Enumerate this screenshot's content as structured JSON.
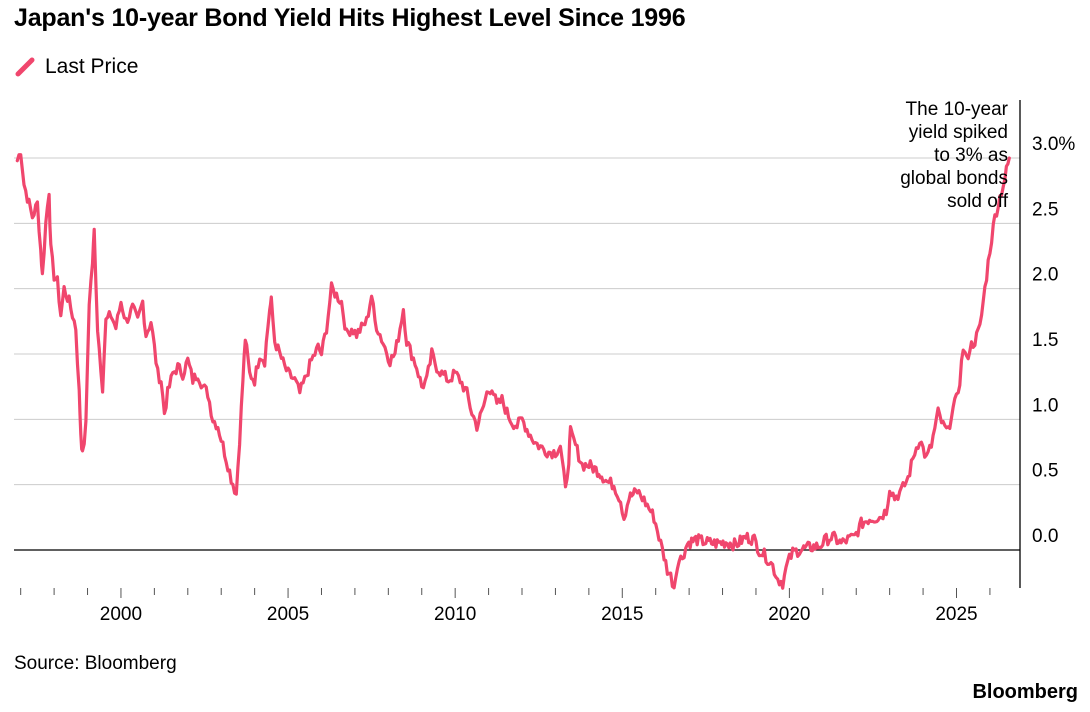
{
  "chart_data": {
    "type": "line",
    "title": "Japan's 10-year Bond Yield Hits Highest Level Since 1996",
    "legend": {
      "placement": "top-left",
      "entries": [
        "Last Price"
      ]
    },
    "series": [
      {
        "name": "Last Price",
        "color": "#f0466d",
        "points": [
          [
            1996.9,
            2.98
          ],
          [
            1997.0,
            3.06
          ],
          [
            1997.1,
            2.8
          ],
          [
            1997.2,
            2.7
          ],
          [
            1997.35,
            2.55
          ],
          [
            1997.5,
            2.65
          ],
          [
            1997.6,
            2.3
          ],
          [
            1997.65,
            2.1
          ],
          [
            1997.75,
            2.5
          ],
          [
            1997.85,
            2.75
          ],
          [
            1997.9,
            2.3
          ],
          [
            1998.0,
            2.1
          ],
          [
            1998.1,
            2.05
          ],
          [
            1998.2,
            1.8
          ],
          [
            1998.3,
            2.0
          ],
          [
            1998.45,
            1.9
          ],
          [
            1998.55,
            1.8
          ],
          [
            1998.65,
            1.7
          ],
          [
            1998.75,
            1.2
          ],
          [
            1998.8,
            0.9
          ],
          [
            1998.85,
            0.72
          ],
          [
            1998.95,
            0.95
          ],
          [
            1999.05,
            1.9
          ],
          [
            1999.15,
            2.2
          ],
          [
            1999.2,
            2.44
          ],
          [
            1999.3,
            1.7
          ],
          [
            1999.45,
            1.25
          ],
          [
            1999.55,
            1.75
          ],
          [
            1999.7,
            1.8
          ],
          [
            1999.85,
            1.7
          ],
          [
            2000.0,
            1.9
          ],
          [
            2000.15,
            1.75
          ],
          [
            2000.35,
            1.85
          ],
          [
            2000.5,
            1.75
          ],
          [
            2000.65,
            1.9
          ],
          [
            2000.75,
            1.65
          ],
          [
            2000.9,
            1.75
          ],
          [
            2001.0,
            1.55
          ],
          [
            2001.1,
            1.35
          ],
          [
            2001.2,
            1.3
          ],
          [
            2001.3,
            1.05
          ],
          [
            2001.4,
            1.2
          ],
          [
            2001.55,
            1.35
          ],
          [
            2001.7,
            1.4
          ],
          [
            2001.85,
            1.35
          ],
          [
            2002.0,
            1.45
          ],
          [
            2002.15,
            1.3
          ],
          [
            2002.3,
            1.35
          ],
          [
            2002.45,
            1.25
          ],
          [
            2002.6,
            1.2
          ],
          [
            2002.75,
            1.0
          ],
          [
            2002.9,
            0.95
          ],
          [
            2003.0,
            0.85
          ],
          [
            2003.15,
            0.7
          ],
          [
            2003.3,
            0.55
          ],
          [
            2003.45,
            0.43
          ],
          [
            2003.55,
            0.85
          ],
          [
            2003.65,
            1.3
          ],
          [
            2003.72,
            1.62
          ],
          [
            2003.85,
            1.35
          ],
          [
            2004.0,
            1.3
          ],
          [
            2004.15,
            1.5
          ],
          [
            2004.3,
            1.45
          ],
          [
            2004.45,
            1.85
          ],
          [
            2004.5,
            1.9
          ],
          [
            2004.6,
            1.6
          ],
          [
            2004.75,
            1.5
          ],
          [
            2004.9,
            1.4
          ],
          [
            2005.0,
            1.35
          ],
          [
            2005.2,
            1.3
          ],
          [
            2005.35,
            1.2
          ],
          [
            2005.5,
            1.3
          ],
          [
            2005.7,
            1.45
          ],
          [
            2005.9,
            1.55
          ],
          [
            2006.0,
            1.5
          ],
          [
            2006.15,
            1.7
          ],
          [
            2006.3,
            2.0
          ],
          [
            2006.45,
            1.95
          ],
          [
            2006.6,
            1.9
          ],
          [
            2006.75,
            1.65
          ],
          [
            2006.9,
            1.7
          ],
          [
            2007.05,
            1.65
          ],
          [
            2007.2,
            1.7
          ],
          [
            2007.35,
            1.75
          ],
          [
            2007.5,
            1.95
          ],
          [
            2007.6,
            1.75
          ],
          [
            2007.75,
            1.65
          ],
          [
            2007.9,
            1.55
          ],
          [
            2008.05,
            1.45
          ],
          [
            2008.2,
            1.5
          ],
          [
            2008.35,
            1.7
          ],
          [
            2008.45,
            1.85
          ],
          [
            2008.55,
            1.6
          ],
          [
            2008.7,
            1.5
          ],
          [
            2008.85,
            1.4
          ],
          [
            2009.0,
            1.25
          ],
          [
            2009.15,
            1.3
          ],
          [
            2009.3,
            1.5
          ],
          [
            2009.45,
            1.4
          ],
          [
            2009.6,
            1.35
          ],
          [
            2009.8,
            1.3
          ],
          [
            2010.0,
            1.35
          ],
          [
            2010.15,
            1.3
          ],
          [
            2010.35,
            1.2
          ],
          [
            2010.5,
            1.05
          ],
          [
            2010.65,
            0.95
          ],
          [
            2010.8,
            1.05
          ],
          [
            2010.95,
            1.2
          ],
          [
            2011.1,
            1.25
          ],
          [
            2011.25,
            1.1
          ],
          [
            2011.4,
            1.15
          ],
          [
            2011.55,
            1.05
          ],
          [
            2011.7,
            0.98
          ],
          [
            2011.85,
            0.95
          ],
          [
            2012.0,
            1.0
          ],
          [
            2012.2,
            0.9
          ],
          [
            2012.4,
            0.82
          ],
          [
            2012.6,
            0.78
          ],
          [
            2012.8,
            0.75
          ],
          [
            2013.0,
            0.75
          ],
          [
            2013.15,
            0.8
          ],
          [
            2013.3,
            0.45
          ],
          [
            2013.4,
            0.7
          ],
          [
            2013.45,
            0.9
          ],
          [
            2013.6,
            0.8
          ],
          [
            2013.8,
            0.65
          ],
          [
            2014.0,
            0.65
          ],
          [
            2014.3,
            0.6
          ],
          [
            2014.55,
            0.52
          ],
          [
            2014.75,
            0.5
          ],
          [
            2014.95,
            0.38
          ],
          [
            2015.05,
            0.25
          ],
          [
            2015.2,
            0.4
          ],
          [
            2015.45,
            0.45
          ],
          [
            2015.6,
            0.4
          ],
          [
            2015.8,
            0.32
          ],
          [
            2015.95,
            0.25
          ],
          [
            2016.1,
            0.1
          ],
          [
            2016.2,
            0.0
          ],
          [
            2016.35,
            -0.15
          ],
          [
            2016.45,
            -0.2
          ],
          [
            2016.55,
            -0.28
          ],
          [
            2016.65,
            -0.1
          ],
          [
            2016.8,
            -0.05
          ],
          [
            2016.95,
            0.05
          ],
          [
            2017.2,
            0.08
          ],
          [
            2017.5,
            0.06
          ],
          [
            2017.8,
            0.05
          ],
          [
            2018.1,
            0.06
          ],
          [
            2018.4,
            0.04
          ],
          [
            2018.7,
            0.1
          ],
          [
            2018.95,
            0.08
          ],
          [
            2019.1,
            0.0
          ],
          [
            2019.3,
            -0.05
          ],
          [
            2019.5,
            -0.12
          ],
          [
            2019.65,
            -0.22
          ],
          [
            2019.8,
            -0.25
          ],
          [
            2019.95,
            -0.1
          ],
          [
            2020.1,
            -0.02
          ],
          [
            2020.3,
            0.0
          ],
          [
            2020.6,
            0.02
          ],
          [
            2020.9,
            0.03
          ],
          [
            2021.1,
            0.08
          ],
          [
            2021.3,
            0.1
          ],
          [
            2021.55,
            0.05
          ],
          [
            2021.75,
            0.08
          ],
          [
            2021.95,
            0.1
          ],
          [
            2022.15,
            0.2
          ],
          [
            2022.4,
            0.24
          ],
          [
            2022.7,
            0.25
          ],
          [
            2022.9,
            0.3
          ],
          [
            2023.0,
            0.48
          ],
          [
            2023.15,
            0.4
          ],
          [
            2023.35,
            0.45
          ],
          [
            2023.55,
            0.55
          ],
          [
            2023.75,
            0.75
          ],
          [
            2023.9,
            0.85
          ],
          [
            2024.1,
            0.7
          ],
          [
            2024.25,
            0.8
          ],
          [
            2024.45,
            1.05
          ],
          [
            2024.6,
            0.95
          ],
          [
            2024.75,
            0.9
          ],
          [
            2024.85,
            1.05
          ],
          [
            2025.0,
            1.15
          ],
          [
            2025.1,
            1.3
          ],
          [
            2025.2,
            1.55
          ],
          [
            2025.3,
            1.45
          ],
          [
            2025.4,
            1.55
          ],
          [
            2025.55,
            1.6
          ],
          [
            2025.7,
            1.7
          ],
          [
            2025.85,
            2.0
          ],
          [
            2026.0,
            2.3
          ],
          [
            2026.15,
            2.55
          ],
          [
            2026.3,
            2.7
          ],
          [
            2026.45,
            2.85
          ],
          [
            2026.58,
            3.0
          ]
        ]
      }
    ],
    "x_ticks": [
      "2000",
      "2005",
      "2010",
      "2015",
      "2020",
      "2025"
    ],
    "x_tick_values": [
      2000,
      2005,
      2010,
      2015,
      2020,
      2025
    ],
    "y_ticks": [
      "0.0",
      "0.5",
      "1.0",
      "1.5",
      "2.0",
      "2.5",
      "3.0%"
    ],
    "y_tick_values": [
      0,
      0.5,
      1.0,
      1.5,
      2.0,
      2.5,
      3.0
    ],
    "xlim": [
      1996.8,
      2026.9
    ],
    "ylim": [
      -0.3,
      3.0
    ],
    "grid": true,
    "annotation": {
      "lines": [
        "The 10-year",
        "yield spiked",
        "to 3% as",
        "global bonds",
        "sold off"
      ],
      "x": 2026.58
    },
    "xlabel": "",
    "ylabel": ""
  },
  "footer": {
    "source": "Source: Bloomberg",
    "brand": "Bloomberg"
  }
}
